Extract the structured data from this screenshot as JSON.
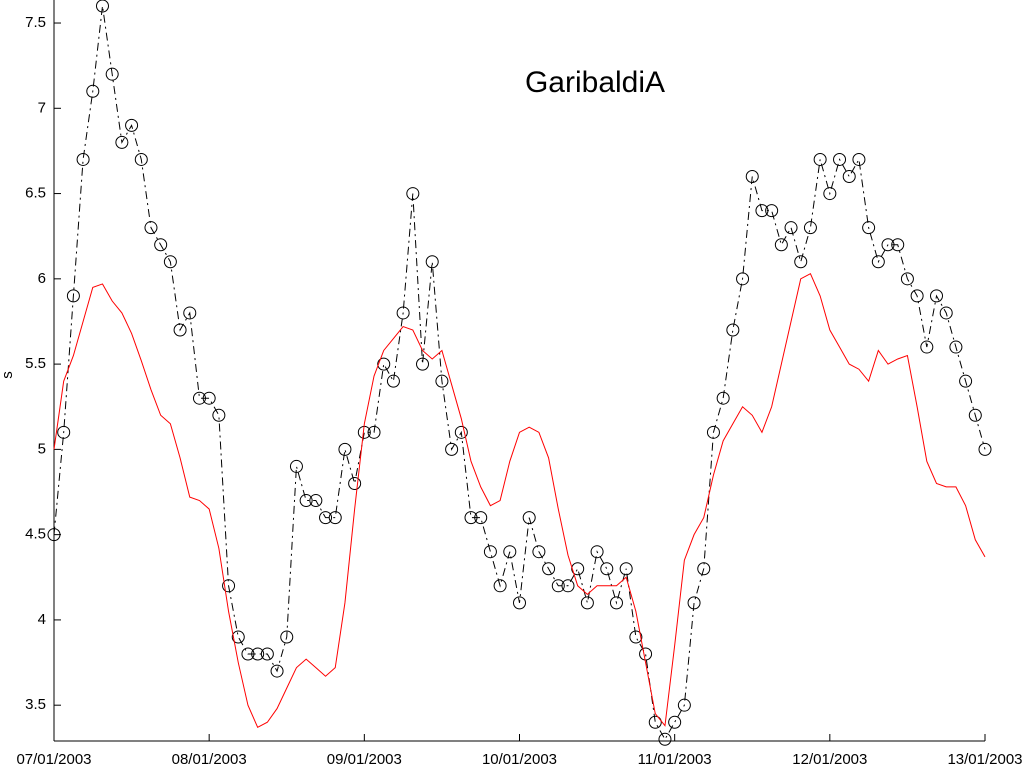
{
  "chart_data": {
    "type": "line",
    "title": "GaribaldiA",
    "y_label": "s",
    "x": [
      0,
      0.0625,
      0.125,
      0.1875,
      0.25,
      0.3125,
      0.375,
      0.4375,
      0.5,
      0.5625,
      0.625,
      0.6875,
      0.75,
      0.8125,
      0.875,
      0.9375,
      1,
      1.0625,
      1.125,
      1.1875,
      1.25,
      1.3125,
      1.375,
      1.4375,
      1.5,
      1.5625,
      1.625,
      1.6875,
      1.75,
      1.8125,
      1.875,
      1.9375,
      2,
      2.0625,
      2.125,
      2.1875,
      2.25,
      2.3125,
      2.375,
      2.4375,
      2.5,
      2.5625,
      2.625,
      2.6875,
      2.75,
      2.8125,
      2.875,
      2.9375,
      3,
      3.0625,
      3.125,
      3.1875,
      3.25,
      3.3125,
      3.375,
      3.4375,
      3.5,
      3.5625,
      3.625,
      3.6875,
      3.75,
      3.8125,
      3.875,
      3.9375,
      4,
      4.0625,
      4.125,
      4.1875,
      4.25,
      4.3125,
      4.375,
      4.4375,
      4.5,
      4.5625,
      4.625,
      4.6875,
      4.75,
      4.8125,
      4.875,
      4.9375,
      5,
      5.0625,
      5.125,
      5.1875,
      5.25,
      5.3125,
      5.375,
      5.4375,
      5.5,
      5.5625,
      5.625,
      5.6875,
      5.75,
      5.8125,
      5.875,
      5.9375,
      6
    ],
    "series": [
      {
        "color": "#000000",
        "marker": "circle",
        "linestyle": "dashdot",
        "values": [
          4.5,
          5.1,
          5.9,
          6.7,
          7.1,
          7.6,
          7.2,
          6.8,
          6.9,
          6.7,
          6.3,
          6.2,
          6.1,
          5.7,
          5.8,
          5.3,
          5.3,
          5.2,
          4.2,
          3.9,
          3.8,
          3.8,
          3.8,
          3.7,
          3.9,
          4.9,
          4.7,
          4.7,
          4.6,
          4.6,
          5.0,
          4.8,
          5.1,
          5.1,
          5.5,
          5.4,
          5.8,
          6.5,
          5.5,
          6.1,
          5.4,
          5.0,
          5.1,
          4.6,
          4.6,
          4.4,
          4.2,
          4.4,
          4.1,
          4.6,
          4.4,
          4.3,
          4.2,
          4.2,
          4.3,
          4.1,
          4.4,
          4.3,
          4.1,
          4.3,
          3.9,
          3.8,
          3.4,
          3.3,
          3.4,
          3.5,
          4.1,
          4.3,
          5.1,
          5.3,
          5.7,
          6.0,
          6.6,
          6.4,
          6.4,
          6.2,
          6.3,
          6.1,
          6.3,
          6.7,
          6.5,
          6.7,
          6.6,
          6.7,
          6.3,
          6.1,
          6.2,
          6.2,
          6.0,
          5.9,
          5.6,
          5.9,
          5.8,
          5.6,
          5.4,
          5.2,
          5.0
        ]
      },
      {
        "color": "#ff0000",
        "marker": "none",
        "linestyle": "solid",
        "values": [
          5.0,
          5.4,
          5.55,
          5.75,
          5.95,
          5.97,
          5.87,
          5.8,
          5.68,
          5.52,
          5.35,
          5.2,
          5.15,
          4.95,
          4.72,
          4.7,
          4.65,
          4.42,
          4.05,
          3.75,
          3.5,
          3.37,
          3.4,
          3.48,
          3.6,
          3.72,
          3.77,
          3.72,
          3.67,
          3.72,
          4.1,
          4.65,
          5.15,
          5.43,
          5.58,
          5.65,
          5.72,
          5.7,
          5.58,
          5.53,
          5.58,
          5.38,
          5.18,
          4.93,
          4.78,
          4.67,
          4.7,
          4.93,
          5.1,
          5.13,
          5.1,
          4.95,
          4.65,
          4.38,
          4.2,
          4.15,
          4.2,
          4.2,
          4.2,
          4.25,
          4.05,
          3.75,
          3.45,
          3.38,
          3.85,
          4.35,
          4.5,
          4.6,
          4.85,
          5.05,
          5.15,
          5.25,
          5.2,
          5.1,
          5.25,
          5.5,
          5.75,
          6.0,
          6.03,
          5.9,
          5.7,
          5.6,
          5.5,
          5.47,
          5.4,
          5.58,
          5.5,
          5.53,
          5.55,
          5.25,
          4.93,
          4.8,
          4.78,
          4.78,
          4.67,
          4.47,
          4.37
        ]
      }
    ],
    "xlim": [
      0,
      6
    ],
    "xticks": [
      {
        "value": 0,
        "label": "07/01/2003"
      },
      {
        "value": 1,
        "label": "08/01/2003"
      },
      {
        "value": 2,
        "label": "09/01/2003"
      },
      {
        "value": 3,
        "label": "10/01/2003"
      },
      {
        "value": 4,
        "label": "11/01/2003"
      },
      {
        "value": 5,
        "label": "12/01/2003"
      },
      {
        "value": 6,
        "label": "13/01/2003"
      }
    ],
    "ylim": [
      3.29,
      7.635
    ],
    "yticks": [
      3.5,
      4,
      4.5,
      5,
      5.5,
      6,
      6.5,
      7,
      7.5
    ],
    "grid": false
  }
}
